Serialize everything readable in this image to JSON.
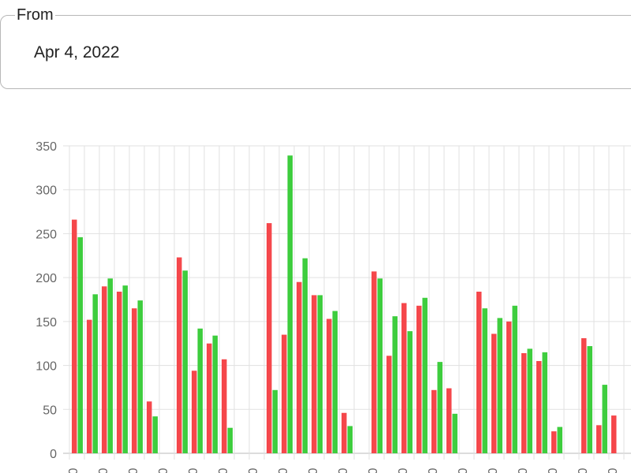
{
  "date_picker": {
    "label": "From",
    "value": "Apr 4, 2022"
  },
  "chart_data": {
    "type": "bar",
    "ylim": [
      0,
      350
    ],
    "yticks": [
      0,
      50,
      100,
      150,
      200,
      250,
      300,
      350
    ],
    "grid": true,
    "colors": [
      "#f5474b",
      "#3ecd3e"
    ],
    "series": [
      {
        "values": [
          266,
          152,
          190,
          184,
          165,
          59,
          null,
          223,
          94,
          125,
          107,
          null,
          null,
          262,
          135,
          195,
          180,
          153,
          46,
          null,
          207,
          111,
          171,
          168,
          72,
          74,
          null,
          184,
          136,
          150,
          114,
          105,
          25,
          null,
          131,
          32,
          43
        ]
      },
      {
        "values": [
          246,
          181,
          199,
          191,
          174,
          42,
          null,
          208,
          142,
          134,
          29,
          null,
          null,
          72,
          339,
          222,
          180,
          162,
          31,
          null,
          199,
          156,
          139,
          177,
          104,
          45,
          null,
          165,
          154,
          168,
          119,
          115,
          30,
          null,
          122,
          78,
          null
        ]
      }
    ],
    "x_tick_labels": [
      "0",
      "0",
      "0",
      "0",
      "0",
      "0",
      "0",
      "0",
      "0",
      "0",
      "0",
      "0",
      "0",
      "0",
      "0",
      "0",
      "0",
      "0",
      "0",
      "0"
    ]
  }
}
